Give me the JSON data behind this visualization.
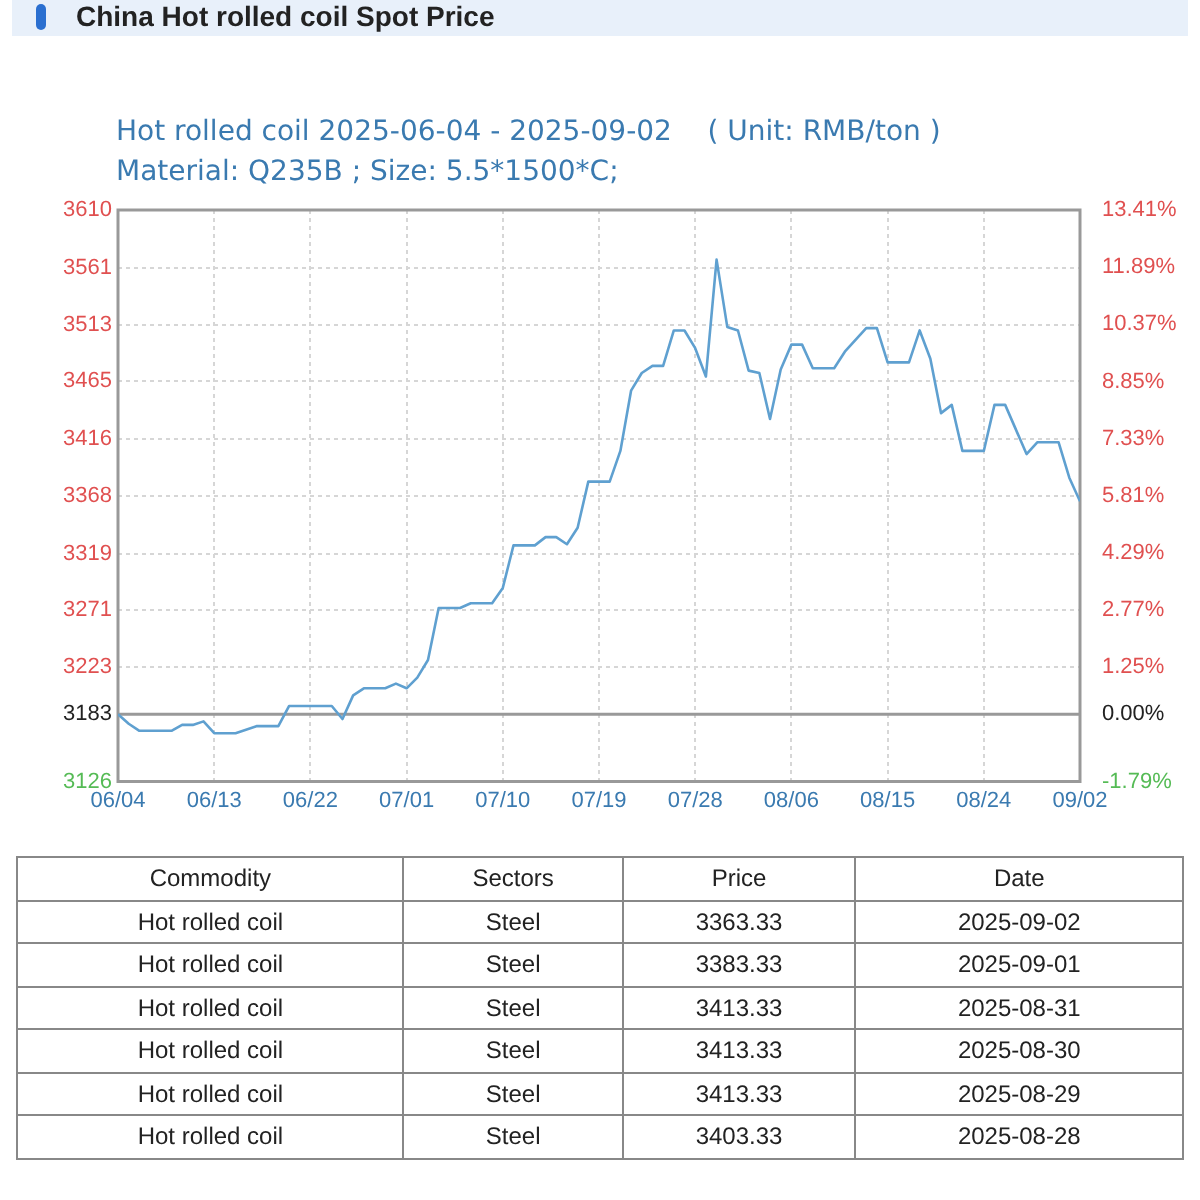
{
  "chart_data": [
    {
      "type": "line",
      "title": "China Hot rolled coil Spot Price",
      "subtitle": "Hot rolled coil 2025-06-04 - 2025-09-02    ( Unit: RMB/ton )",
      "annotations": [
        "Material: Q235B ; Size: 5.5*1500*C;"
      ],
      "x": [
        "2025-06-04",
        "2025-06-05",
        "2025-06-06",
        "2025-06-09",
        "2025-06-10",
        "2025-06-11",
        "2025-06-12",
        "2025-06-13",
        "2025-06-15",
        "2025-06-17",
        "2025-06-19",
        "2025-06-20",
        "2025-06-24",
        "2025-06-25",
        "2025-06-26",
        "2025-06-27",
        "2025-06-29",
        "2025-06-30",
        "2025-07-01",
        "2025-07-02",
        "2025-07-03",
        "2025-07-04",
        "2025-07-06",
        "2025-07-07",
        "2025-07-09",
        "2025-07-10",
        "2025-07-11",
        "2025-07-13",
        "2025-07-14",
        "2025-07-15",
        "2025-07-16",
        "2025-07-17",
        "2025-07-18",
        "2025-07-20",
        "2025-07-21",
        "2025-07-22",
        "2025-07-23",
        "2025-07-24",
        "2025-07-25",
        "2025-07-26",
        "2025-07-27",
        "2025-07-28",
        "2025-07-29",
        "2025-07-30",
        "2025-07-31",
        "2025-08-01",
        "2025-08-02",
        "2025-08-03",
        "2025-08-04",
        "2025-08-05",
        "2025-08-06",
        "2025-08-07",
        "2025-08-08",
        "2025-08-10",
        "2025-08-11",
        "2025-08-13",
        "2025-08-14",
        "2025-08-15",
        "2025-08-17",
        "2025-08-18",
        "2025-08-19",
        "2025-08-20",
        "2025-08-21",
        "2025-08-22",
        "2025-08-24",
        "2025-08-25",
        "2025-08-26",
        "2025-08-28",
        "2025-08-29",
        "2025-08-30",
        "2025-08-31",
        "2025-09-01",
        "2025-09-02"
      ],
      "series": [
        {
          "color": "#5fa0d0",
          "values": [
            3183,
            3175,
            3169,
            3169,
            3174,
            3174,
            3177,
            3167,
            3167,
            3173,
            3173,
            3190,
            3190,
            3179,
            3199,
            3205,
            3205,
            3209,
            3205,
            3214,
            3229,
            3273,
            3273,
            3277,
            3277,
            3290,
            3326,
            3326,
            3333,
            3333,
            3327,
            3341,
            3380,
            3380,
            3406,
            3457,
            3472,
            3478,
            3478,
            3508,
            3508,
            3493,
            3469,
            3568,
            3511,
            3508,
            3474,
            3472,
            3433,
            3475,
            3496,
            3496,
            3476,
            3476,
            3490,
            3510,
            3510,
            3481,
            3481,
            3508,
            3484,
            3438,
            3445,
            3406,
            3406,
            3445,
            3445,
            3403.33,
            3413.33,
            3413.33,
            3413.33,
            3383.33,
            3363.33
          ]
        }
      ],
      "xlim": [
        "2025-06-04",
        "2025-09-02"
      ],
      "xticks": [
        {
          "value": "2025-06-04",
          "label": "06/04"
        },
        {
          "value": "2025-06-13",
          "label": "06/13"
        },
        {
          "value": "2025-06-22",
          "label": "06/22"
        },
        {
          "value": "2025-07-01",
          "label": "07/01"
        },
        {
          "value": "2025-07-10",
          "label": "07/10"
        },
        {
          "value": "2025-07-19",
          "label": "07/19"
        },
        {
          "value": "2025-07-28",
          "label": "07/28"
        },
        {
          "value": "2025-08-06",
          "label": "08/06"
        },
        {
          "value": "2025-08-15",
          "label": "08/15"
        },
        {
          "value": "2025-08-24",
          "label": "08/24"
        },
        {
          "value": "2025-09-02",
          "label": "09/02"
        }
      ],
      "ylim": [
        3126,
        3610
      ],
      "yticks": [
        3126,
        3183,
        3223,
        3271,
        3319,
        3368,
        3416,
        3465,
        3513,
        3561,
        3610
      ],
      "y2lim": [
        -1.79,
        13.41
      ],
      "y2ticks": [
        {
          "value": -1.79,
          "label": "-1.79%"
        },
        {
          "value": 0,
          "label": "0.00%"
        },
        {
          "value": 1.25,
          "label": "1.25%"
        },
        {
          "value": 2.77,
          "label": "2.77%"
        },
        {
          "value": 4.29,
          "label": "4.29%"
        },
        {
          "value": 5.81,
          "label": "5.81%"
        },
        {
          "value": 7.33,
          "label": "7.33%"
        },
        {
          "value": 8.85,
          "label": "8.85%"
        },
        {
          "value": 10.37,
          "label": "10.37%"
        },
        {
          "value": 11.89,
          "label": "11.89%"
        },
        {
          "value": 13.41,
          "label": "13.41%"
        }
      ],
      "ref_lines": [
        {
          "axis": "y",
          "value": 3183,
          "color": "#999999"
        }
      ],
      "grid": true,
      "legend": false,
      "marker": "none",
      "line_style": "solid"
    },
    {
      "type": "other",
      "categories": [
        "Commodity",
        "Sectors",
        "Price",
        "Date"
      ],
      "annotations": [
        "Hot rolled coil",
        "Steel",
        "3363.33",
        "2025-09-02",
        "Hot rolled coil",
        "Steel",
        "3383.33",
        "2025-09-01",
        "Hot rolled coil",
        "Steel",
        "3413.33",
        "2025-08-31",
        "Hot rolled coil",
        "Steel",
        "3413.33",
        "2025-08-30",
        "Hot rolled coil",
        "Steel",
        "3413.33",
        "2025-08-29",
        "Hot rolled coil",
        "Steel",
        "3403.33",
        "2025-08-28"
      ]
    }
  ]
}
